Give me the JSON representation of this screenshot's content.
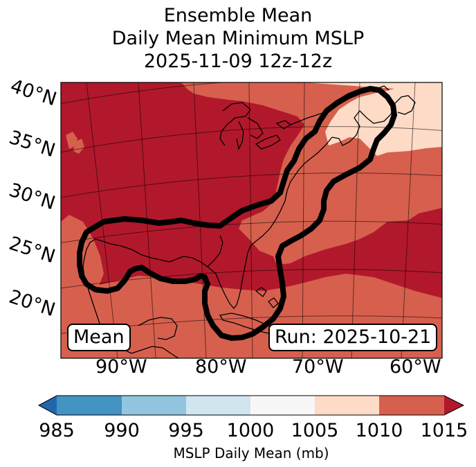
{
  "title": {
    "line1": "Ensemble Mean",
    "line2": "Daily Mean Minimum MSLP",
    "line3": "2025-11-09 12z-12z"
  },
  "map": {
    "lat_labels": [
      "40°N",
      "35°N",
      "30°N",
      "25°N",
      "20°N"
    ],
    "lon_labels": [
      "90°W",
      "80°W",
      "70°W",
      "60°W"
    ],
    "left_box": "Mean",
    "right_box": "Run: 2025-10-21"
  },
  "colorbar": {
    "ticks": [
      "985",
      "990",
      "995",
      "1000",
      "1005",
      "1010",
      "1015"
    ],
    "label": "MSLP Daily Mean (mb)",
    "colors": [
      "#2166ac",
      "#4393c3",
      "#92c5de",
      "#d1e5f0",
      "#f7f7f7",
      "#fddbc7",
      "#d6604d",
      "#b2182b"
    ]
  },
  "colors": {
    "red_dark": "#b2182b",
    "red_mid": "#d6604d",
    "peach": "#fddbc7"
  }
}
